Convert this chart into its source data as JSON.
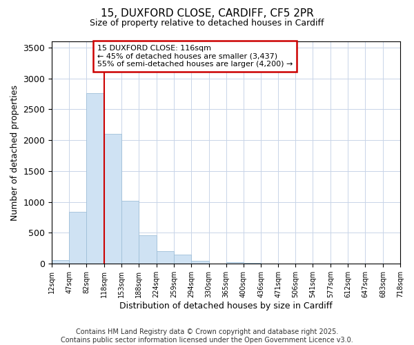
{
  "title_line1": "15, DUXFORD CLOSE, CARDIFF, CF5 2PR",
  "title_line2": "Size of property relative to detached houses in Cardiff",
  "xlabel": "Distribution of detached houses by size in Cardiff",
  "ylabel": "Number of detached properties",
  "footnote1": "Contains HM Land Registry data © Crown copyright and database right 2025.",
  "footnote2": "Contains public sector information licensed under the Open Government Licence v3.0.",
  "annotation_line1": "15 DUXFORD CLOSE: 116sqm",
  "annotation_line2": "← 45% of detached houses are smaller (3,437)",
  "annotation_line3": "55% of semi-detached houses are larger (4,200) →",
  "bar_values": [
    55,
    840,
    2760,
    2100,
    1020,
    455,
    205,
    145,
    50,
    0,
    30,
    10,
    0,
    0,
    0,
    0,
    0,
    0,
    0,
    0
  ],
  "bin_labels": [
    "12sqm",
    "47sqm",
    "82sqm",
    "118sqm",
    "153sqm",
    "188sqm",
    "224sqm",
    "259sqm",
    "294sqm",
    "330sqm",
    "365sqm",
    "400sqm",
    "436sqm",
    "471sqm",
    "506sqm",
    "541sqm",
    "577sqm",
    "612sqm",
    "647sqm",
    "683sqm",
    "718sqm"
  ],
  "bar_color": "#cfe2f3",
  "bar_edge_color": "#9fbfd8",
  "ylim": [
    0,
    3600
  ],
  "yticks": [
    0,
    500,
    1000,
    1500,
    2000,
    2500,
    3000,
    3500
  ],
  "grid_color": "#c8d4e8",
  "annotation_box_color": "#cc0000",
  "property_line_color": "#cc0000",
  "background_color": "#ffffff",
  "title_fontsize": 11,
  "subtitle_fontsize": 9,
  "ylabel_fontsize": 9,
  "xlabel_fontsize": 9,
  "footnote_fontsize": 7
}
